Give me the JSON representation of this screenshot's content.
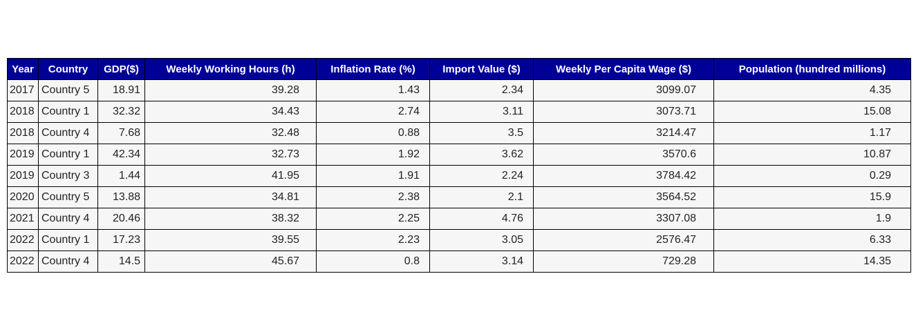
{
  "chart_data": {
    "type": "table",
    "columns": [
      "Year",
      "Country",
      "GDP($)",
      "Weekly Working Hours (h)",
      "Inflation Rate (%)",
      "Import Value ($)",
      "Weekly Per Capita Wage ($)",
      "Population (hundred millions)"
    ],
    "rows": [
      [
        "2017",
        "Country 5",
        "18.91",
        "39.28",
        "1.43",
        "2.34",
        "3099.07",
        "4.35"
      ],
      [
        "2018",
        "Country 1",
        "32.32",
        "34.43",
        "2.74",
        "3.11",
        "3073.71",
        "15.08"
      ],
      [
        "2018",
        "Country 4",
        "7.68",
        "32.48",
        "0.88",
        "3.5",
        "3214.47",
        "1.17"
      ],
      [
        "2019",
        "Country 1",
        "42.34",
        "32.73",
        "1.92",
        "3.62",
        "3570.6",
        "10.87"
      ],
      [
        "2019",
        "Country 3",
        "1.44",
        "41.95",
        "1.91",
        "2.24",
        "3784.42",
        "0.29"
      ],
      [
        "2020",
        "Country 5",
        "13.88",
        "34.81",
        "2.38",
        "2.1",
        "3564.52",
        "15.9"
      ],
      [
        "2021",
        "Country 4",
        "20.46",
        "38.32",
        "2.25",
        "4.76",
        "3307.08",
        "1.9"
      ],
      [
        "2022",
        "Country 1",
        "17.23",
        "39.55",
        "2.23",
        "3.05",
        "2576.47",
        "6.33"
      ],
      [
        "2022",
        "Country 4",
        "14.5",
        "45.67",
        "0.8",
        "3.14",
        "729.28",
        "14.35"
      ]
    ],
    "colors": {
      "header_background": "#000099",
      "header_text": "#ffffff",
      "cell_background": "#f6f6f6",
      "cell_text": "#222222",
      "border": "#000000"
    }
  }
}
